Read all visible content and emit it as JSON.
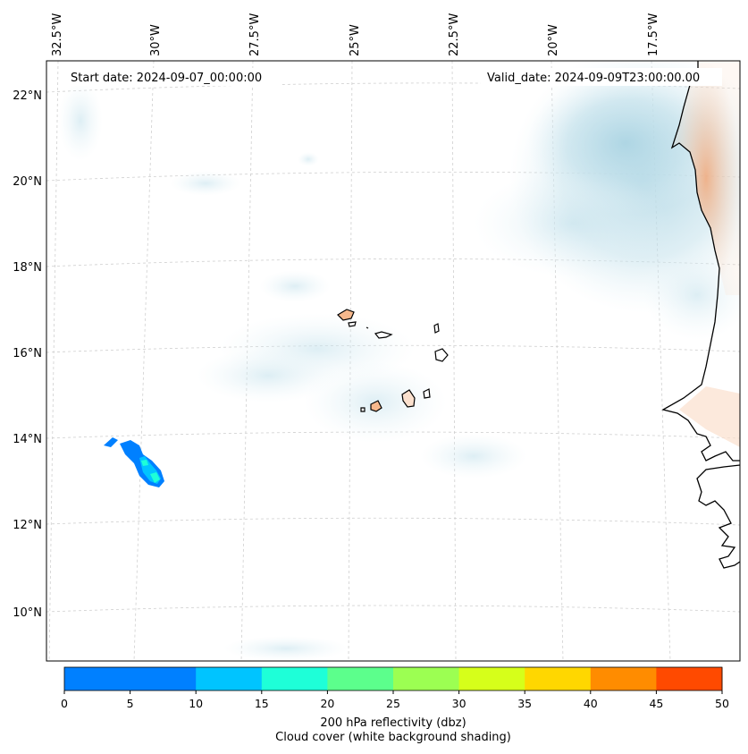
{
  "header": {
    "start_date": "Start date: 2024-09-07_00:00:00",
    "valid_date": "Valid_date: 2024-09-09T23:00:00.00"
  },
  "map": {
    "lon_labels": [
      "32.5°W",
      "30°W",
      "27.5°W",
      "25°W",
      "22.5°W",
      "20°W",
      "17.5°W"
    ],
    "lat_labels": [
      "22°N",
      "20°N",
      "18°N",
      "16°N",
      "14°N",
      "12°N",
      "10°N"
    ],
    "extent": {
      "lon": [
        -33.0,
        -15.5
      ],
      "lat": [
        8.8,
        22.8
      ]
    }
  },
  "colorbar": {
    "ticks": [
      "0",
      "5",
      "10",
      "15",
      "20",
      "25",
      "30",
      "35",
      "40",
      "45",
      "50"
    ],
    "colors": [
      "#0080ff",
      "#00c4ff",
      "#1effd8",
      "#5cff8c",
      "#9cff52",
      "#d6ff1a",
      "#ffd700",
      "#ff8c00",
      "#ff4a00"
    ],
    "label_line1": "200 hPa reflectivity (dbz)",
    "label_line2": "Cloud cover (white background shading)"
  },
  "chart_data": {
    "type": "heatmap",
    "title": "",
    "colorbar_range": [
      0,
      50
    ],
    "colorbar_step": 5,
    "colorbar_label": "200 hPa reflectivity (dbz)",
    "secondary_label": "Cloud cover (white background shading)",
    "reflectivity_features": [
      {
        "region": "near 13.5°N, 31°W",
        "dbz_range": [
          0,
          15
        ],
        "max_dbz": 15
      }
    ],
    "cloud_cover": "light blue shading over Cape Verde region and off West African coast (17–22°N, 15.5–20°W)",
    "grid": true
  },
  "colors": {
    "cloud": "#a9d3e2",
    "land": "#f6b88c",
    "coast": "#000000",
    "grid": "#bfbfbf"
  }
}
